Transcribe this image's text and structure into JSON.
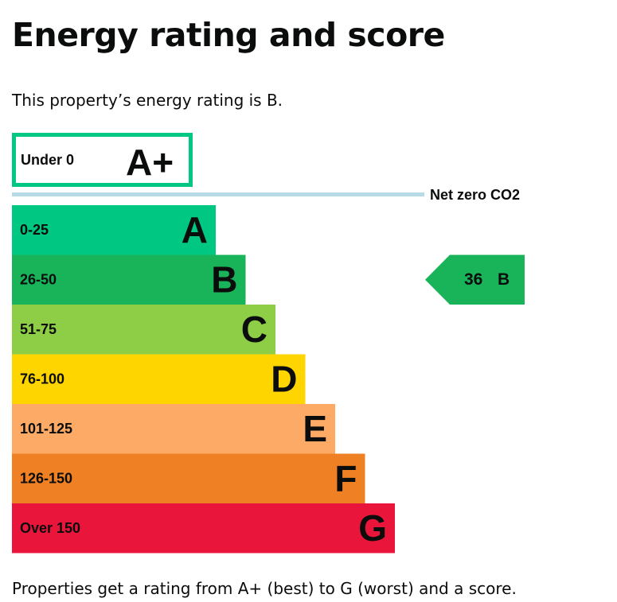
{
  "page": {
    "title": "Energy rating and score",
    "intro": "This property’s energy rating is B.",
    "footer": "Properties get a rating from A+ (best) to G (worst) and a score."
  },
  "chart_data": {
    "type": "bar",
    "title": "Energy rating and score",
    "top_band": {
      "label": "Under 0",
      "rating": "A+",
      "color": "#00c781"
    },
    "net_zero_label": "Net zero CO2",
    "net_zero_color": "#b6dbe7",
    "bands": [
      {
        "range": "0-25",
        "rating": "A",
        "color": "#00c781"
      },
      {
        "range": "26-50",
        "rating": "B",
        "color": "#19b459"
      },
      {
        "range": "51-75",
        "rating": "C",
        "color": "#8dce46"
      },
      {
        "range": "76-100",
        "rating": "D",
        "color": "#ffd500"
      },
      {
        "range": "101-125",
        "rating": "E",
        "color": "#fcaa65"
      },
      {
        "range": "126-150",
        "rating": "F",
        "color": "#ef8023"
      },
      {
        "range": "Over 150",
        "rating": "G",
        "color": "#e9153b"
      }
    ],
    "current": {
      "score": "36",
      "rating": "B",
      "band_index": 1,
      "color": "#19b459"
    }
  }
}
